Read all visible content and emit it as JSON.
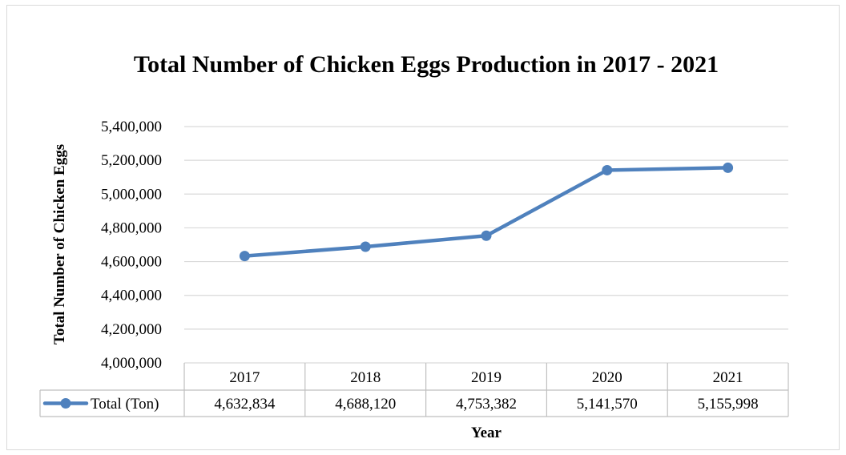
{
  "chart_data": {
    "type": "line",
    "title": "Total Number of Chicken Eggs Production in 2017 - 2021",
    "xlabel": "Year",
    "ylabel": "Total Number of  Chicken Eggs",
    "categories": [
      "2017",
      "2018",
      "2019",
      "2020",
      "2021"
    ],
    "series": [
      {
        "name": "Total (Ton)",
        "values": [
          4632834,
          4688120,
          4753382,
          5141570,
          5155998
        ],
        "labels": [
          "4,632,834",
          "4,688,120",
          "4,753,382",
          "5,141,570",
          "5,155,998"
        ],
        "color": "#4f81bd"
      }
    ],
    "ylim": [
      4000000,
      5400000
    ],
    "yticks": [
      4000000,
      4200000,
      4400000,
      4600000,
      4800000,
      5000000,
      5200000,
      5400000
    ],
    "ytick_labels": [
      "4,000,000",
      "4,200,000",
      "4,400,000",
      "4,600,000",
      "4,800,000",
      "5,000,000",
      "5,200,000",
      "5,400,000"
    ],
    "grid": true,
    "legend": "data table below plot"
  },
  "colors": {
    "series": "#4f81bd",
    "grid": "#d9d9d9",
    "table_border": "#bfbfbf"
  }
}
